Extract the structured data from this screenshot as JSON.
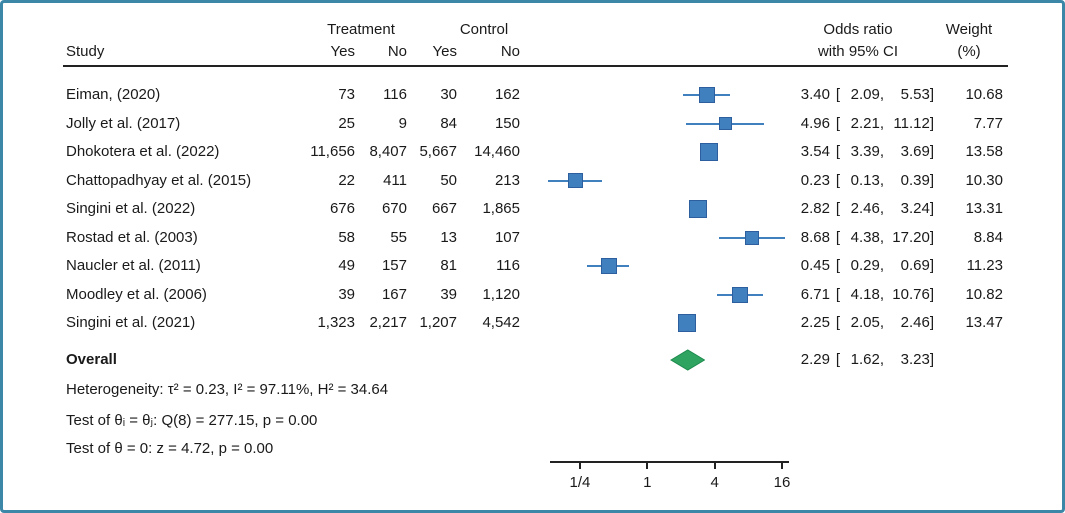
{
  "header": {
    "study": "Study",
    "treatment": "Treatment",
    "control": "Control",
    "yes": "Yes",
    "no": "No",
    "or_line1": "Odds ratio",
    "or_line2": "with 95% CI",
    "weight_line1": "Weight",
    "weight_line2": "(%)"
  },
  "chart_data": {
    "type": "forest",
    "x_axis": {
      "scale": "log",
      "log_base": 4,
      "ticks": [
        {
          "label": "1/4",
          "value": 0.25
        },
        {
          "label": "1",
          "value": 1
        },
        {
          "label": "4",
          "value": 4
        },
        {
          "label": "16",
          "value": 16
        }
      ]
    },
    "studies": [
      {
        "name": "Eiman, (2020)",
        "treatment_yes": "73",
        "treatment_no": "116",
        "control_yes": "30",
        "control_no": "162",
        "or": "3.40",
        "ci_low": "2.09",
        "ci_high": "5.53",
        "weight": "10.68"
      },
      {
        "name": "Jolly et al. (2017)",
        "treatment_yes": "25",
        "treatment_no": "9",
        "control_yes": "84",
        "control_no": "150",
        "or": "4.96",
        "ci_low": "2.21",
        "ci_high": "11.12",
        "weight": "7.77"
      },
      {
        "name": "Dhokotera et al. (2022)",
        "treatment_yes": "11,656",
        "treatment_no": "8,407",
        "control_yes": "5,667",
        "control_no": "14,460",
        "or": "3.54",
        "ci_low": "3.39",
        "ci_high": "3.69",
        "weight": "13.58"
      },
      {
        "name": "Chattopadhyay et al. (2015)",
        "treatment_yes": "22",
        "treatment_no": "411",
        "control_yes": "50",
        "control_no": "213",
        "or": "0.23",
        "ci_low": "0.13",
        "ci_high": "0.39",
        "weight": "10.30"
      },
      {
        "name": "Singini et al. (2022)",
        "treatment_yes": "676",
        "treatment_no": "670",
        "control_yes": "667",
        "control_no": "1,865",
        "or": "2.82",
        "ci_low": "2.46",
        "ci_high": "3.24",
        "weight": "13.31"
      },
      {
        "name": "Rostad et al. (2003)",
        "treatment_yes": "58",
        "treatment_no": "55",
        "control_yes": "13",
        "control_no": "107",
        "or": "8.68",
        "ci_low": "4.38",
        "ci_high": "17.20",
        "weight": "8.84"
      },
      {
        "name": "Naucler et al. (2011)",
        "treatment_yes": "49",
        "treatment_no": "157",
        "control_yes": "81",
        "control_no": "116",
        "or": "0.45",
        "ci_low": "0.29",
        "ci_high": "0.69",
        "weight": "11.23"
      },
      {
        "name": "Moodley et al. (2006)",
        "treatment_yes": "39",
        "treatment_no": "167",
        "control_yes": "39",
        "control_no": "1,120",
        "or": "6.71",
        "ci_low": "4.18",
        "ci_high": "10.76",
        "weight": "10.82"
      },
      {
        "name": "Singini et al. (2021)",
        "treatment_yes": "1,323",
        "treatment_no": "2,217",
        "control_yes": "1,207",
        "control_no": "4,542",
        "or": "2.25",
        "ci_low": "2.05",
        "ci_high": "2.46",
        "weight": "13.47"
      }
    ],
    "overall": {
      "label": "Overall",
      "or": "2.29",
      "ci_low": "1.62",
      "ci_high": "3.23"
    },
    "stats": {
      "heterogeneity": "Heterogeneity: τ² = 0.23, I² = 97.11%, H² = 34.64",
      "test_equal": "Test of θᵢ = θⱼ: Q(8) = 277.15, p = 0.00",
      "test_zero": "Test of θ = 0: z = 4.72, p = 0.00"
    },
    "colors": {
      "square_fill": "#4080bf",
      "square_border": "#2d5f9e",
      "ci_line": "#4080bf",
      "diamond_fill": "#2fa461",
      "diamond_border": "#1d8a4c",
      "frame_border": "#3c86a7",
      "axis": "#222222"
    }
  }
}
